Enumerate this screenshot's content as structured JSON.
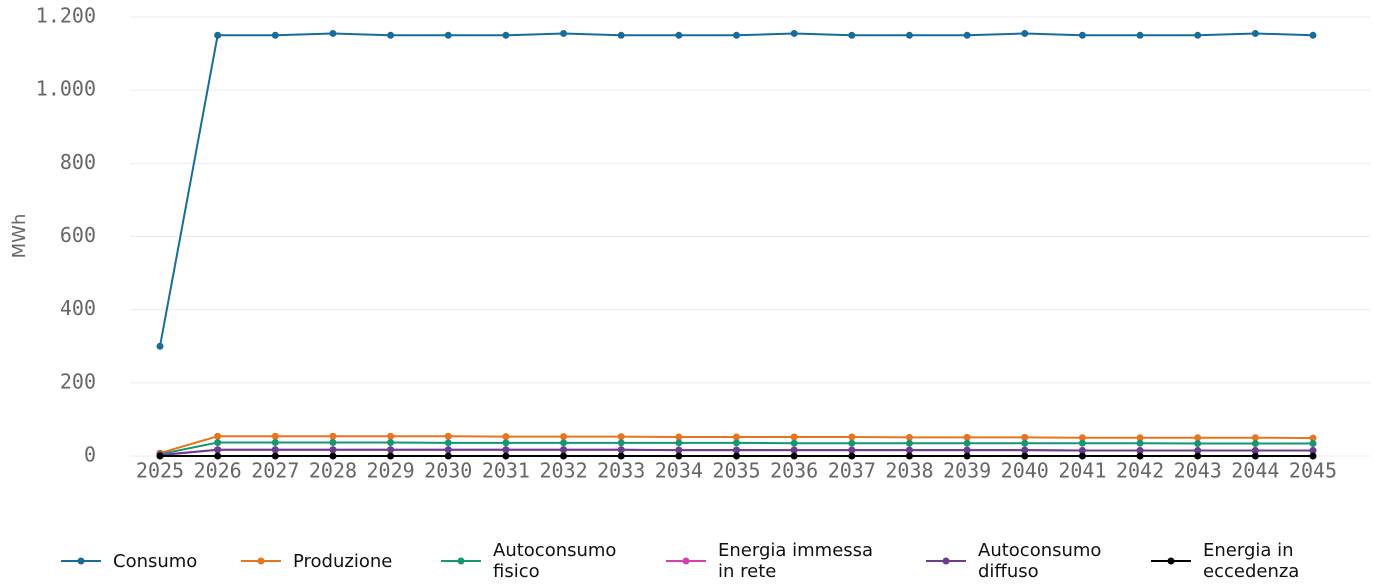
{
  "chart_data": {
    "type": "line",
    "y_label": "MWh",
    "categories": [
      "2025",
      "2026",
      "2027",
      "2028",
      "2029",
      "2030",
      "2031",
      "2032",
      "2033",
      "2034",
      "2035",
      "2036",
      "2037",
      "2038",
      "2039",
      "2040",
      "2041",
      "2042",
      "2043",
      "2044",
      "2045"
    ],
    "series": [
      {
        "name": "Consumo",
        "color": "#176d98",
        "values": [
          300,
          1150,
          1150,
          1155,
          1150,
          1150,
          1150,
          1155,
          1150,
          1150,
          1150,
          1155,
          1150,
          1150,
          1150,
          1155,
          1150,
          1150,
          1150,
          1155,
          1150
        ]
      },
      {
        "name": "Produzione",
        "color": "#e8741e",
        "values": [
          8,
          54,
          54,
          54,
          54,
          54,
          53,
          53,
          53,
          52,
          52,
          52,
          52,
          51,
          51,
          51,
          50,
          50,
          50,
          50,
          49
        ]
      },
      {
        "name": "Autoconsumo fisico",
        "color": "#179672",
        "values": [
          5,
          37,
          37,
          37,
          37,
          36,
          36,
          36,
          36,
          36,
          36,
          35,
          35,
          35,
          35,
          35,
          35,
          35,
          34,
          34,
          34
        ]
      },
      {
        "name": "Energia immessa in rete",
        "color": "#d63fb4",
        "values": [
          3,
          17,
          17,
          17,
          17,
          17,
          17,
          17,
          17,
          16,
          16,
          16,
          16,
          16,
          16,
          16,
          15,
          15,
          15,
          15,
          15
        ]
      },
      {
        "name": "Autoconsumo diffuso",
        "color": "#6a3d8e",
        "values": [
          2,
          17,
          17,
          17,
          17,
          17,
          17,
          17,
          17,
          16,
          16,
          16,
          16,
          16,
          16,
          16,
          15,
          15,
          15,
          15,
          15
        ]
      },
      {
        "name": "Energia in eccedenza",
        "color": "#000000",
        "values": [
          0,
          0,
          0,
          0,
          0,
          0,
          0,
          0,
          0,
          0,
          0,
          0,
          0,
          0,
          0,
          0,
          0,
          0,
          0,
          0,
          0
        ]
      }
    ],
    "ylim": [
      0,
      1200
    ],
    "yticks": [
      0,
      200,
      400,
      600,
      800,
      {
        "value": 1000,
        "label": "1.000"
      },
      {
        "value": 1200,
        "label": "1.200"
      }
    ],
    "grid": true
  }
}
